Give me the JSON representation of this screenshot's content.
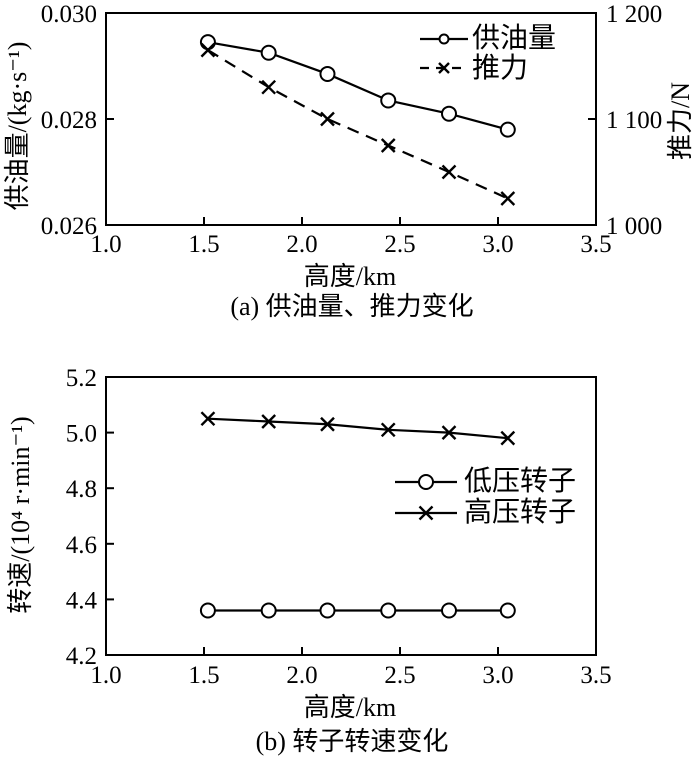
{
  "page": {
    "background": "#ffffff",
    "ink": "#000000"
  },
  "chart_data": [
    {
      "id": "a",
      "type": "line",
      "title": "(a) 供油量、推力变化",
      "xlabel": "高度/km",
      "ylabel": "供油量/(kg·s⁻¹)",
      "y2label": "推力/N",
      "xlim": [
        1.0,
        3.5
      ],
      "ylim": [
        0.026,
        0.03
      ],
      "y2lim": [
        1000,
        1200
      ],
      "x_ticks": [
        "1.0",
        "1.5",
        "2.0",
        "2.5",
        "3.0",
        "3.5"
      ],
      "y_ticks": [
        "0.030",
        "0.028",
        "0.026"
      ],
      "y2_ticks": [
        "1 200",
        "1 100",
        "1 000"
      ],
      "grid": false,
      "legend_position": "upper right inside",
      "x": [
        1.52,
        1.83,
        2.13,
        2.44,
        2.75,
        3.05
      ],
      "series": [
        {
          "name": "供油量",
          "axis": "left",
          "marker": "circle",
          "line": "solid",
          "values": [
            0.02945,
            0.02925,
            0.02885,
            0.02835,
            0.0281,
            0.0278
          ]
        },
        {
          "name": "推力",
          "axis": "right",
          "marker": "x",
          "line": "dashed",
          "values": [
            1165,
            1130,
            1100,
            1075,
            1050,
            1025
          ]
        }
      ]
    },
    {
      "id": "b",
      "type": "line",
      "title": "(b) 转子转速变化",
      "xlabel": "高度/km",
      "ylabel": "转速/(10⁴ r·min⁻¹)",
      "xlim": [
        1.0,
        3.5
      ],
      "ylim": [
        4.2,
        5.2
      ],
      "x_ticks": [
        "1.0",
        "1.5",
        "2.0",
        "2.5",
        "3.0",
        "3.5"
      ],
      "y_ticks": [
        "5.2",
        "5.0",
        "4.8",
        "4.6",
        "4.4",
        "4.2"
      ],
      "grid": false,
      "legend_position": "center right inside",
      "x": [
        1.52,
        1.83,
        2.13,
        2.44,
        2.75,
        3.05
      ],
      "series": [
        {
          "name": "低压转子",
          "axis": "left",
          "marker": "circle",
          "line": "solid",
          "values": [
            4.36,
            4.36,
            4.36,
            4.36,
            4.36,
            4.36
          ]
        },
        {
          "name": "高压转子",
          "axis": "left",
          "marker": "x",
          "line": "solid",
          "values": [
            5.05,
            5.04,
            5.03,
            5.01,
            5.0,
            4.98
          ]
        }
      ]
    }
  ]
}
